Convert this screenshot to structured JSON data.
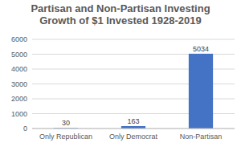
{
  "chart_data": {
    "type": "bar",
    "title": "Partisan and Non-Partisan Investing Growth of $1 Invested 1928-2019",
    "categories": [
      "Only Republican",
      "Only Democrat",
      "Non-Partisan"
    ],
    "values": [
      30,
      163,
      5034
    ],
    "color": "#4472c4",
    "ylim": [
      0,
      6000
    ],
    "yticks": [
      0,
      1000,
      2000,
      3000,
      4000,
      5000,
      6000
    ],
    "grid": true,
    "data_labels": true
  }
}
